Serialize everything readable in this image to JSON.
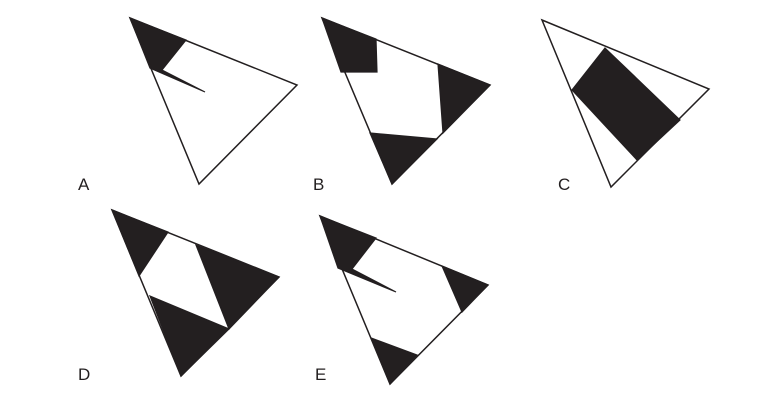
{
  "figure": {
    "options": [
      {
        "id": "A",
        "label": "A"
      },
      {
        "id": "B",
        "label": "B"
      },
      {
        "id": "C",
        "label": "C"
      },
      {
        "id": "D",
        "label": "D"
      },
      {
        "id": "E",
        "label": "E"
      }
    ],
    "colors": {
      "shading": "#231f20",
      "outline": "#231f20",
      "background": "#ffffff"
    }
  }
}
